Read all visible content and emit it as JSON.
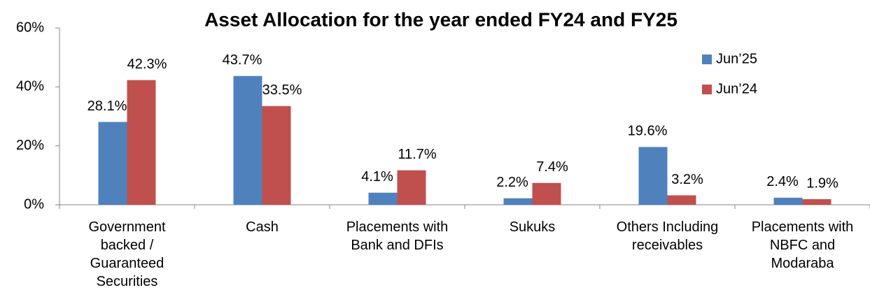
{
  "chart_data": {
    "type": "bar",
    "title": "Asset Allocation for the year ended FY24 and FY25",
    "categories": [
      "Government\nbacked /\nGuaranteed\nSecurities",
      "Cash",
      "Placements with\nBank and DFIs",
      "Sukuks",
      "Others Including\nreceivables",
      "Placements with\nNBFC and\nModaraba"
    ],
    "series": [
      {
        "name": "Jun’25",
        "color": "#4f81bd",
        "values": [
          28.1,
          43.7,
          4.1,
          2.2,
          19.6,
          2.4
        ],
        "value_labels": [
          "28.1%",
          "43.7%",
          "4.1%",
          "2.2%",
          "19.6%",
          "2.4%"
        ]
      },
      {
        "name": "Jun’24",
        "color": "#c0504d",
        "values": [
          42.3,
          33.5,
          11.7,
          7.4,
          3.2,
          1.9
        ],
        "value_labels": [
          "42.3%",
          "33.5%",
          "11.7%",
          "7.4%",
          "3.2%",
          "1.9%"
        ]
      }
    ],
    "ylim": [
      0,
      60
    ],
    "yticks": [
      {
        "value": 0,
        "label": "0%"
      },
      {
        "value": 20,
        "label": "20%"
      },
      {
        "value": 40,
        "label": "40%"
      },
      {
        "value": 60,
        "label": "60%"
      }
    ],
    "grid": false,
    "legend": "upper right"
  }
}
